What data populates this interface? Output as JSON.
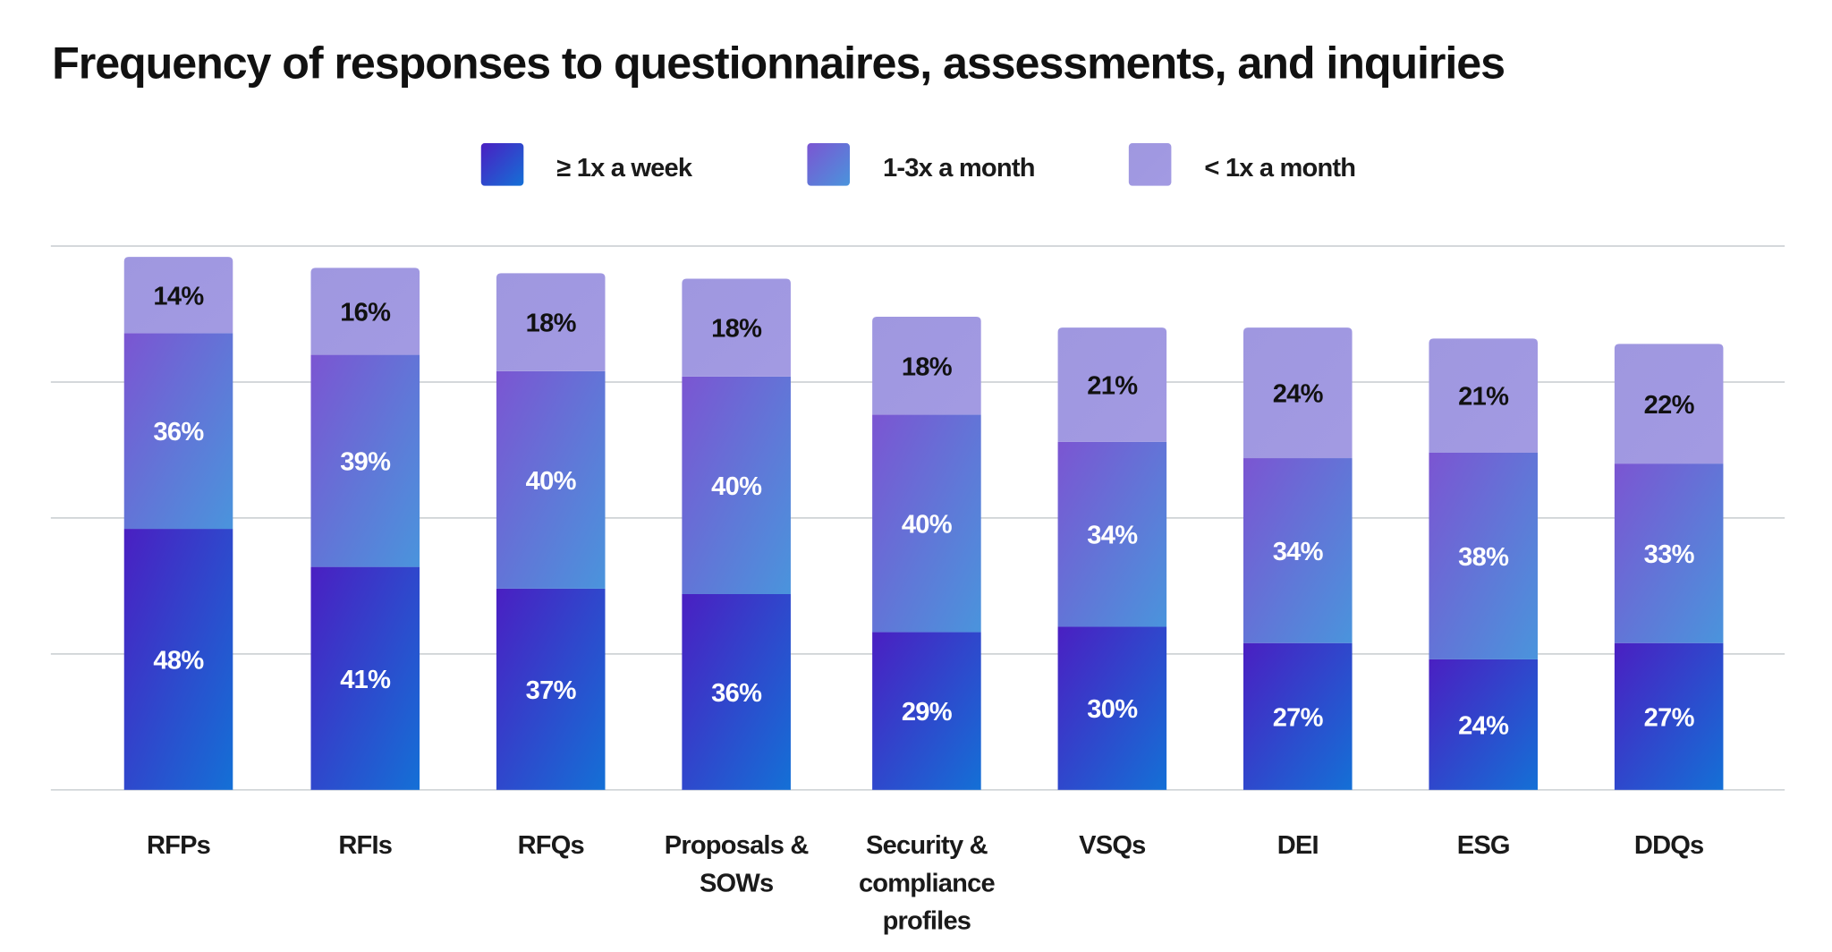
{
  "chart_data": {
    "type": "bar",
    "stacked": true,
    "title": "Frequency of responses to questionnaires, assessments, and inquiries",
    "xlabel": "",
    "ylabel": "",
    "ylim": [
      0,
      100
    ],
    "grid": true,
    "legend_position": "top",
    "categories": [
      "RFPs",
      "RFIs",
      "RFQs",
      "Proposals & SOWs",
      "Security & compliance profiles",
      "VSQs",
      "DEI",
      "ESG",
      "DDQs"
    ],
    "category_lines": [
      [
        "RFPs"
      ],
      [
        "RFIs"
      ],
      [
        "RFQs"
      ],
      [
        "Proposals &",
        "SOWs"
      ],
      [
        "Security &",
        "compliance",
        "profiles"
      ],
      [
        "VSQs"
      ],
      [
        "DEI"
      ],
      [
        "ESG"
      ],
      [
        "DDQs"
      ]
    ],
    "series": [
      {
        "name": "≥ 1x a week",
        "values": [
          48,
          41,
          37,
          36,
          29,
          30,
          27,
          24,
          27
        ],
        "colors": [
          "#4a1fc2",
          "#1470d6"
        ],
        "label_color": "#ffffff"
      },
      {
        "name": "1-3x a month",
        "values": [
          36,
          39,
          40,
          40,
          40,
          34,
          34,
          38,
          33
        ],
        "colors": [
          "#7b55d2",
          "#4a94dc"
        ],
        "label_color": "#ffffff"
      },
      {
        "name": "< 1x a month",
        "values": [
          14,
          16,
          18,
          18,
          18,
          21,
          24,
          21,
          22
        ],
        "colors": [
          "#9f97e0",
          "#a29ae2"
        ],
        "label_color": "#111111"
      }
    ],
    "value_suffix": "%"
  }
}
